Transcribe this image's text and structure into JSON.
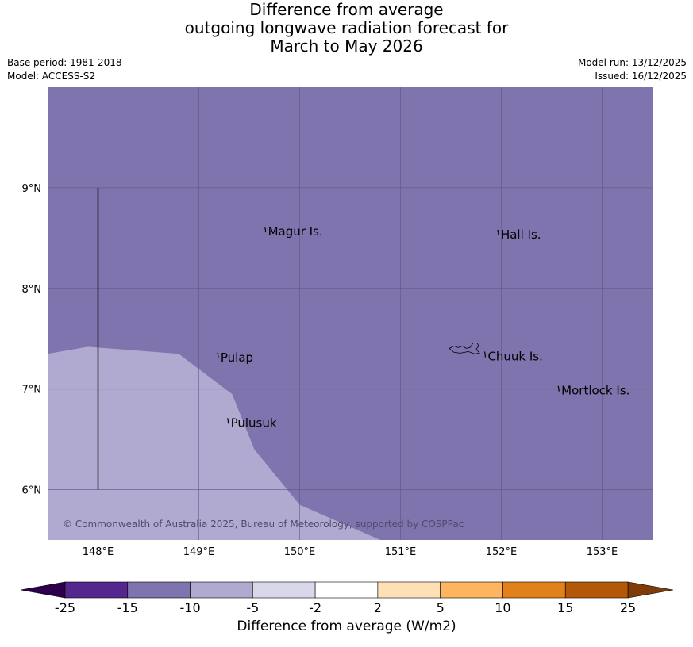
{
  "title": {
    "line1": "Difference from average",
    "line2": "outgoing longwave radiation forecast for",
    "line3": "March to May 2026"
  },
  "meta": {
    "base_period": "Base period: 1981-2018",
    "model": "Model: ACCESS-S2",
    "model_run": "Model run: 13/12/2025",
    "issued": "Issued: 16/12/2025"
  },
  "map": {
    "lon_range": [
      147.5,
      153.5
    ],
    "lat_range": [
      5.5,
      10.0
    ],
    "lon_ticks": [
      148,
      149,
      150,
      151,
      152,
      153
    ],
    "lon_tick_labels": [
      "148°E",
      "149°E",
      "150°E",
      "151°E",
      "152°E",
      "153°E"
    ],
    "lat_ticks": [
      6,
      7,
      8,
      9
    ],
    "lat_tick_labels": [
      "6°N",
      "7°N",
      "8°N",
      "9°N"
    ],
    "grid": true,
    "background_class": "-15 to -10",
    "background_color": "#7f74ad",
    "region_class": "-10 to -5",
    "region_color": "#b0aad1",
    "region_boundary": [
      [
        147.5,
        7.35
      ],
      [
        147.9,
        7.42
      ],
      [
        148.8,
        7.35
      ],
      [
        149.33,
        6.95
      ],
      [
        149.55,
        6.4
      ],
      [
        150.0,
        5.85
      ],
      [
        150.8,
        5.5
      ],
      [
        147.5,
        5.5
      ]
    ],
    "boundary_line": {
      "lon": 148.0,
      "lat_from": 6.0,
      "lat_to": 9.0
    },
    "places": [
      {
        "name": "Magur Is.",
        "lon": 149.67,
        "lat": 8.58
      },
      {
        "name": "Hall Is.",
        "lon": 151.98,
        "lat": 8.55
      },
      {
        "name": "Pulap",
        "lon": 149.2,
        "lat": 7.33
      },
      {
        "name": "Chuuk Is.",
        "lon": 151.85,
        "lat": 7.34
      },
      {
        "name": "Mortlock Is.",
        "lon": 152.58,
        "lat": 7.0
      },
      {
        "name": "Pulusuk",
        "lon": 149.3,
        "lat": 6.68
      }
    ],
    "copyright": "© Commonwealth of Australia 2025, Bureau of Meteorology, supported by COSPPac"
  },
  "colorbar": {
    "label": "Difference from average (W/m2)",
    "tick_labels": [
      "-25",
      "-15",
      "-10",
      "-5",
      "-2",
      "2",
      "5",
      "10",
      "15",
      "25"
    ],
    "colors": [
      "#54278f",
      "#7f74ad",
      "#b0aad1",
      "#d9d8ea",
      "#ffffff",
      "#fde0b6",
      "#fdb55f",
      "#e1811a",
      "#b35806"
    ],
    "under_color": "#2d004b",
    "over_color": "#7f3b08"
  }
}
